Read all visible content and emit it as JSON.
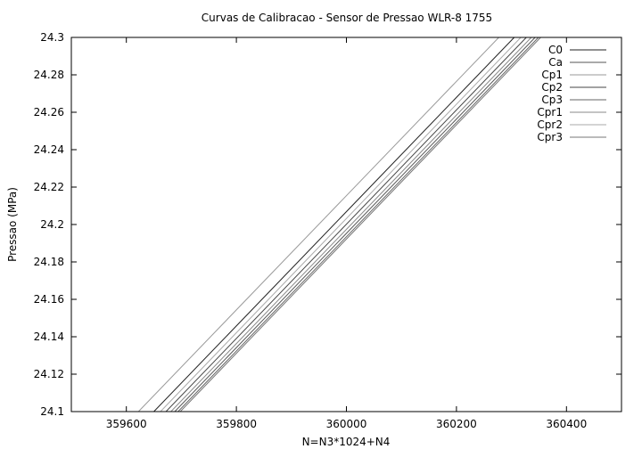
{
  "chart_data": {
    "type": "line",
    "title": "Curvas de Calibracao - Sensor de Pressao WLR-8 1755",
    "xlabel": "N=N3*1024+N4",
    "ylabel": "Pressao (MPa)",
    "xlim": [
      359500,
      360500
    ],
    "ylim": [
      24.1,
      24.3
    ],
    "x_ticks": [
      359600,
      359800,
      360000,
      360200,
      360400
    ],
    "x_tick_labels": [
      "359600",
      "359800",
      "360000",
      "360200",
      "360400"
    ],
    "y_ticks": [
      24.1,
      24.12,
      24.14,
      24.16,
      24.18,
      24.2,
      24.22,
      24.24,
      24.26,
      24.28,
      24.3
    ],
    "y_tick_labels": [
      "24.1",
      "24.12",
      "24.14",
      "24.16",
      "24.18",
      "24.2",
      "24.22",
      "24.24",
      "24.26",
      "24.28",
      "24.3"
    ],
    "grid": false,
    "legend_position": "top-right",
    "series": [
      {
        "name": "C0",
        "color": "#222222",
        "x": [
          359650,
          360305
        ],
        "y": [
          24.1,
          24.3
        ]
      },
      {
        "name": "Ca",
        "color": "#555555",
        "x": [
          359688,
          360343
        ],
        "y": [
          24.1,
          24.3
        ]
      },
      {
        "name": "Cp1",
        "color": "#999999",
        "x": [
          359622,
          360277
        ],
        "y": [
          24.1,
          24.3
        ]
      },
      {
        "name": "Cp2",
        "color": "#444444",
        "x": [
          359672,
          360327
        ],
        "y": [
          24.1,
          24.3
        ]
      },
      {
        "name": "Cp3",
        "color": "#666666",
        "x": [
          359694,
          360349
        ],
        "y": [
          24.1,
          24.3
        ]
      },
      {
        "name": "Cpr1",
        "color": "#888888",
        "x": [
          359681,
          360336
        ],
        "y": [
          24.1,
          24.3
        ]
      },
      {
        "name": "Cpr2",
        "color": "#aaaaaa",
        "x": [
          359662,
          360317
        ],
        "y": [
          24.1,
          24.3
        ]
      },
      {
        "name": "Cpr3",
        "color": "#777777",
        "x": [
          359698,
          360353
        ],
        "y": [
          24.1,
          24.3
        ]
      }
    ]
  }
}
